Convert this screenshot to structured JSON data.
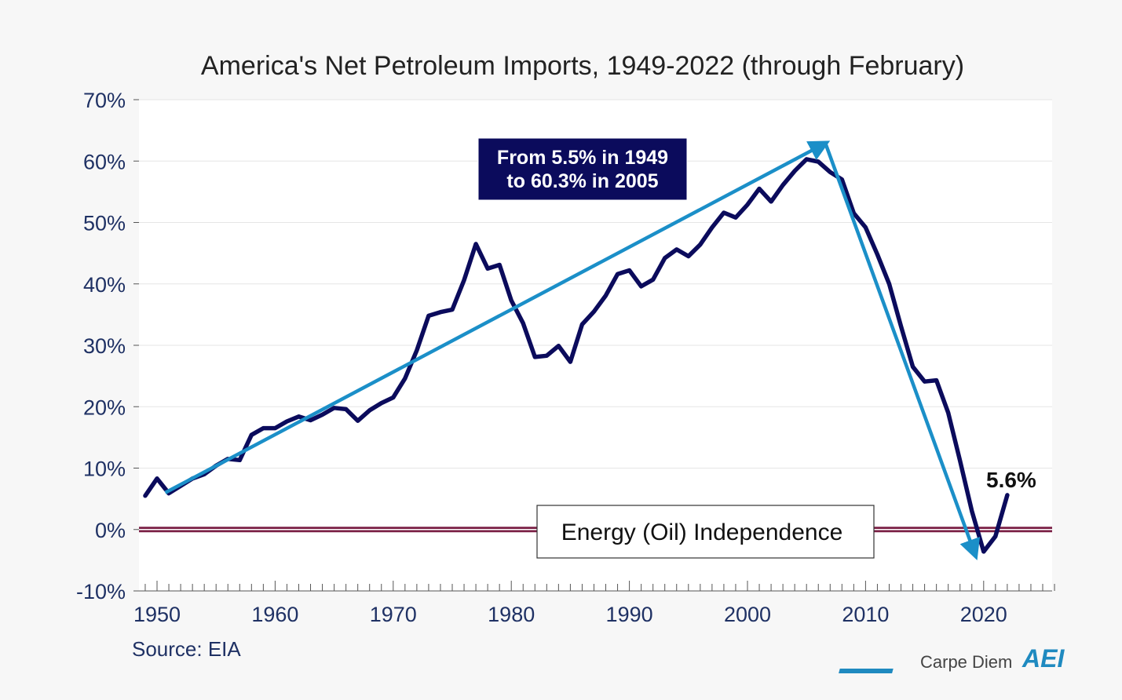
{
  "chart_data": {
    "type": "line",
    "title": "America's Net Petroleum Imports, 1949-2022 (through February)",
    "xlabel": "",
    "ylabel": "",
    "x_ticks": [
      "1950",
      "1960",
      "1970",
      "1980",
      "1990",
      "2000",
      "2010",
      "2020"
    ],
    "y_ticks": [
      "-10%",
      "0%",
      "10%",
      "20%",
      "30%",
      "40%",
      "50%",
      "60%",
      "70%"
    ],
    "xlim": [
      1949,
      2026
    ],
    "ylim": [
      -10,
      70
    ],
    "grid": true,
    "series": [
      {
        "color": "#0b0b5c",
        "x": [
          1949,
          1950,
          1951,
          1952,
          1953,
          1954,
          1955,
          1956,
          1957,
          1958,
          1959,
          1960,
          1961,
          1962,
          1963,
          1964,
          1965,
          1966,
          1967,
          1968,
          1969,
          1970,
          1971,
          1972,
          1973,
          1974,
          1975,
          1976,
          1977,
          1978,
          1979,
          1980,
          1981,
          1982,
          1983,
          1984,
          1985,
          1986,
          1987,
          1988,
          1989,
          1990,
          1991,
          1992,
          1993,
          1994,
          1995,
          1996,
          1997,
          1998,
          1999,
          2000,
          2001,
          2002,
          2003,
          2004,
          2005,
          2006,
          2007,
          2008,
          2009,
          2010,
          2011,
          2012,
          2013,
          2014,
          2015,
          2016,
          2017,
          2018,
          2019,
          2020,
          2021,
          2022
        ],
        "values": [
          5.5,
          8.3,
          5.9,
          7.1,
          8.3,
          9.0,
          10.4,
          11.5,
          11.3,
          15.4,
          16.5,
          16.5,
          17.6,
          18.4,
          17.8,
          18.7,
          19.8,
          19.6,
          17.7,
          19.4,
          20.6,
          21.5,
          24.6,
          29.2,
          34.8,
          35.4,
          35.8,
          40.6,
          46.5,
          42.5,
          43.1,
          37.3,
          33.6,
          28.1,
          28.3,
          29.9,
          27.3,
          33.4,
          35.5,
          38.1,
          41.6,
          42.2,
          39.6,
          40.7,
          44.2,
          45.6,
          44.5,
          46.4,
          49.2,
          51.6,
          50.8,
          52.9,
          55.5,
          53.4,
          56.1,
          58.4,
          60.3,
          59.9,
          58.2,
          57.0,
          51.5,
          49.2,
          44.8,
          40.0,
          33.1,
          26.5,
          24.1,
          24.3,
          19.0,
          11.2,
          3.0,
          -3.6,
          -1.1,
          5.6
        ]
      }
    ],
    "annotations": {
      "callout_line1": "From 5.5% in 1949",
      "callout_line2": "to 60.3% in 2005",
      "independence": "Energy (Oil) Independence",
      "last_value": "5.6%"
    },
    "trend_arrows": [
      {
        "from": [
          1950.7,
          6.0
        ],
        "to": [
          2006.6,
          62.9
        ]
      },
      {
        "from": [
          2006.6,
          62.9
        ],
        "to": [
          2019.3,
          -4.2
        ]
      }
    ],
    "zero_line_color": "#7a1f45",
    "arrow_color": "#1b8fc8",
    "callout_color": "#0b0b5c"
  },
  "footer": {
    "source": "Source: EIA",
    "brand": "Carpe Diem",
    "logo": "AEI"
  }
}
